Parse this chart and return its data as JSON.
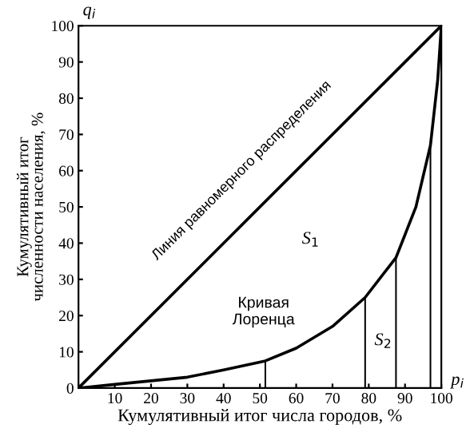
{
  "chart_data": {
    "type": "line",
    "xlabel": "Кумулятивный итог числа городов, %",
    "ylabel": "Кумулятивный итог\nчисленности населения, %",
    "xlim": [
      0,
      100
    ],
    "ylim": [
      0,
      100
    ],
    "xticks": [
      {
        "value": 0,
        "label": null
      },
      10,
      20,
      30,
      40,
      50,
      60,
      70,
      80,
      90,
      100
    ],
    "yticks": [
      0,
      10,
      20,
      30,
      40,
      50,
      60,
      70,
      80,
      90,
      100
    ],
    "grid": false,
    "legend": false,
    "marker": "none",
    "line_style": "solid",
    "series": [
      {
        "color": "#000000",
        "x": [
          0,
          100
        ],
        "values": [
          0,
          100
        ]
      },
      {
        "color": "#000000",
        "x": [
          0,
          10,
          20,
          30,
          40,
          51.5,
          60,
          70,
          79,
          87.5,
          93,
          97,
          99,
          100
        ],
        "values": [
          0,
          1,
          2,
          3,
          5,
          7.5,
          11,
          17,
          25,
          36,
          50,
          67,
          85,
          100
        ]
      },
      {
        "type": "bar",
        "color": "#000000",
        "x": [
          51.5,
          79,
          87.5,
          97
        ],
        "values": [
          7.5,
          25,
          36,
          67
        ]
      }
    ],
    "annotations": [
      "Линия равномерного распределения",
      "Кривая\nЛоренца",
      "S$_{1}$",
      "S$_{2}$",
      "q$_{i}$",
      "p$_{i}$"
    ]
  }
}
